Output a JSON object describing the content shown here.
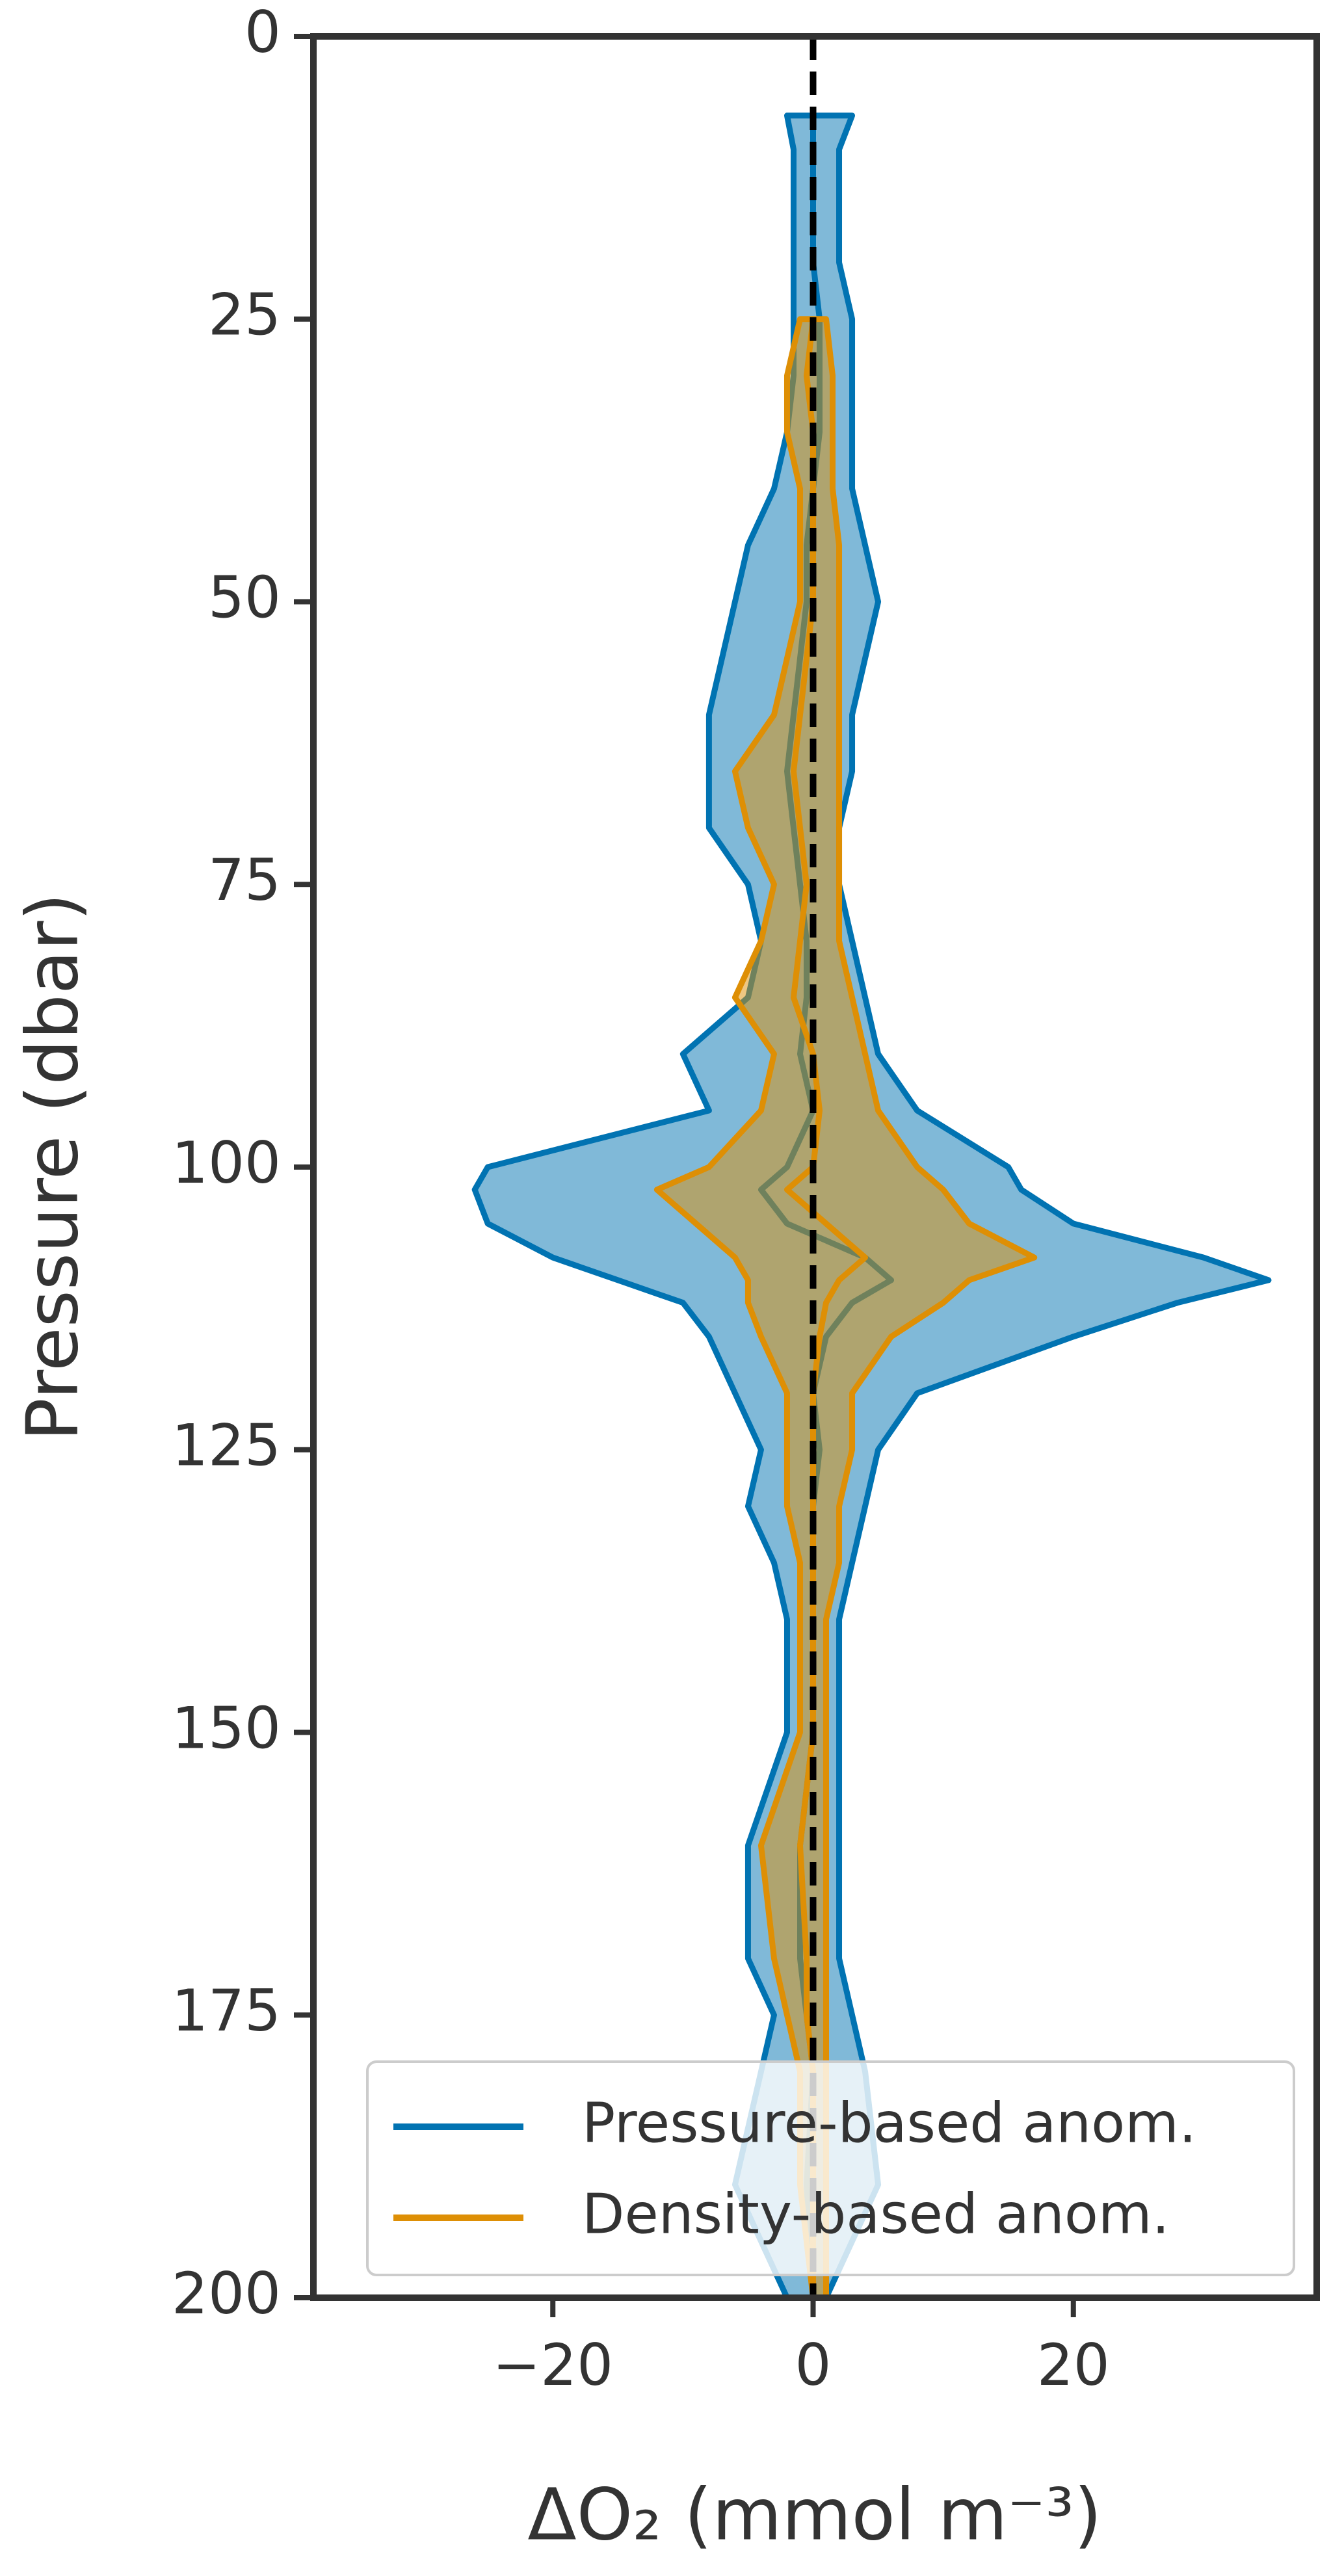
{
  "chart_data": {
    "type": "profile",
    "xlabel": "ΔO₂ (mmol m⁻³)",
    "ylabel": "Pressure (dbar)",
    "xlim": [
      -38.4,
      38.7
    ],
    "ylim": [
      0,
      200
    ],
    "y_inverted": true,
    "xticks": [
      {
        "value": -20,
        "label": "−20"
      },
      0,
      20
    ],
    "yticks": [
      0,
      25,
      50,
      75,
      100,
      125,
      150,
      175,
      200
    ],
    "reference_line_x": 0,
    "legend": "lower right",
    "y": [
      7,
      10,
      15,
      20,
      25,
      30,
      35,
      40,
      45,
      50,
      55,
      60,
      65,
      70,
      75,
      80,
      85,
      90,
      95,
      100,
      102,
      105,
      108,
      110,
      112,
      115,
      120,
      125,
      130,
      135,
      140,
      150,
      160,
      170,
      175,
      180,
      190,
      200
    ],
    "series": [
      {
        "name": "Pressure-based anom.",
        "color": "#0173b2",
        "values": [
          0,
          0,
          0,
          0,
          0.5,
          0.5,
          0.5,
          0,
          -0.5,
          -0.5,
          -1,
          -1.5,
          -2,
          -1.5,
          -1,
          -0.5,
          -0.5,
          -1,
          0,
          -2,
          -4,
          -2,
          4,
          6,
          3,
          1,
          0,
          0.5,
          0,
          0,
          0,
          0,
          -1,
          -1,
          -0.5,
          0,
          -0.5,
          0
        ],
        "lower": [
          -2,
          -1.5,
          -1.5,
          -1.5,
          -1.5,
          -1.5,
          -2,
          -3,
          -5,
          -6,
          -7,
          -8,
          -8,
          -8,
          -5,
          -4,
          -5,
          -10,
          -8,
          -25,
          -26,
          -25,
          -20,
          -15,
          -10,
          -8,
          -6,
          -4,
          -5,
          -3,
          -2,
          -2,
          -5,
          -5,
          -3,
          -4,
          -6,
          -2
        ],
        "upper": [
          3,
          2,
          2,
          2,
          3,
          3,
          3,
          3,
          4,
          5,
          4,
          3,
          3,
          2,
          2,
          3,
          4,
          5,
          8,
          15,
          16,
          20,
          30,
          35,
          28,
          20,
          8,
          5,
          4,
          3,
          2,
          2,
          2,
          2,
          3,
          4,
          5,
          1
        ]
      },
      {
        "name": "Density-based anom.",
        "color": "#de8f05",
        "values": [
          null,
          null,
          null,
          null,
          0,
          -0.5,
          0,
          0,
          0,
          0,
          -0.5,
          -1,
          -1.5,
          -1,
          -0.5,
          -1,
          -1.5,
          0,
          0.5,
          0,
          -2,
          1,
          4,
          2,
          1,
          0.5,
          0,
          0,
          0,
          0,
          0,
          0,
          -1,
          -0.5,
          -0.5,
          0,
          0,
          0
        ],
        "lower": [
          null,
          null,
          null,
          null,
          -1,
          -2,
          -2,
          -1,
          -1,
          -1,
          -2,
          -3,
          -6,
          -5,
          -3,
          -4,
          -6,
          -3,
          -4,
          -8,
          -12,
          -9,
          -6,
          -5,
          -5,
          -4,
          -2,
          -2,
          -2,
          -1,
          -1,
          -1,
          -4,
          -3,
          -2,
          -1,
          -1,
          0
        ],
        "upper": [
          null,
          null,
          null,
          null,
          1,
          1.5,
          1.5,
          1.5,
          2,
          2,
          2,
          2,
          2,
          2,
          2,
          2,
          3,
          4,
          5,
          8,
          10,
          12,
          17,
          12,
          10,
          6,
          3,
          3,
          2,
          2,
          1,
          1,
          1,
          1,
          1,
          1,
          1,
          1
        ]
      }
    ]
  }
}
